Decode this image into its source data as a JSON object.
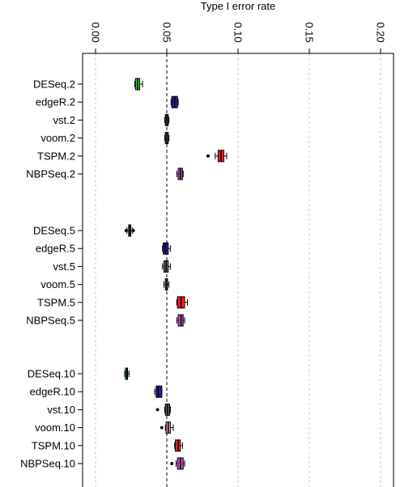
{
  "chart_data": {
    "type": "boxplot",
    "title": "Type I error rate",
    "axis": {
      "range": [
        0.0,
        0.2
      ],
      "ticks": [
        "0.00",
        "0.05",
        "0.10",
        "0.15",
        "0.20"
      ],
      "tick_values": [
        0.0,
        0.05,
        0.1,
        0.15,
        0.2
      ],
      "placement": "top",
      "tick_label_rotation": "90deg"
    },
    "grid": true,
    "reference_line": 0.05,
    "groups": [
      {
        "label": "DESeq.2",
        "color": "#33dd33",
        "min": 0.0275,
        "q1": 0.028,
        "median": 0.0295,
        "q3": 0.031,
        "max": 0.033,
        "outliers": []
      },
      {
        "label": "edgeR.2",
        "color": "#1f1f9e",
        "min": 0.053,
        "q1": 0.0535,
        "median": 0.0555,
        "q3": 0.0575,
        "max": 0.058,
        "outliers": []
      },
      {
        "label": "vst.2",
        "color": "#666666",
        "min": 0.0485,
        "q1": 0.049,
        "median": 0.05,
        "q3": 0.051,
        "max": 0.0515,
        "outliers": []
      },
      {
        "label": "voom.2",
        "color": "#b86f7a",
        "min": 0.0485,
        "q1": 0.049,
        "median": 0.05,
        "q3": 0.051,
        "max": 0.0515,
        "outliers": []
      },
      {
        "label": "TSPM.2",
        "color": "#ff2222",
        "min": 0.084,
        "q1": 0.086,
        "median": 0.088,
        "q3": 0.09,
        "max": 0.092,
        "outliers": [
          0.079
        ]
      },
      {
        "label": "NBPSeq.2",
        "color": "#c04dc0",
        "min": 0.057,
        "q1": 0.058,
        "median": 0.0595,
        "q3": 0.061,
        "max": 0.0615,
        "outliers": []
      },
      {
        "label": "DESeq.5",
        "color": "#33dd33",
        "min": 0.022,
        "q1": 0.0232,
        "median": 0.024,
        "q3": 0.0248,
        "max": 0.026,
        "outliers": [
          0.0215,
          0.0265
        ]
      },
      {
        "label": "edgeR.5",
        "color": "#1f1f9e",
        "min": 0.047,
        "q1": 0.0475,
        "median": 0.049,
        "q3": 0.051,
        "max": 0.0525,
        "outliers": []
      },
      {
        "label": "vst.5",
        "color": "#666666",
        "min": 0.047,
        "q1": 0.048,
        "median": 0.0495,
        "q3": 0.051,
        "max": 0.0525,
        "outliers": []
      },
      {
        "label": "voom.5",
        "color": "#b86f7a",
        "min": 0.048,
        "q1": 0.049,
        "median": 0.05,
        "q3": 0.0505,
        "max": 0.0515,
        "outliers": []
      },
      {
        "label": "TSPM.5",
        "color": "#ff2222",
        "min": 0.057,
        "q1": 0.0575,
        "median": 0.06,
        "q3": 0.0625,
        "max": 0.0645,
        "outliers": []
      },
      {
        "label": "NBPSeq.5",
        "color": "#c04dc0",
        "min": 0.057,
        "q1": 0.058,
        "median": 0.06,
        "q3": 0.0615,
        "max": 0.0625,
        "outliers": []
      },
      {
        "label": "DESeq.10",
        "color": "#33dd33",
        "min": 0.0205,
        "q1": 0.021,
        "median": 0.022,
        "q3": 0.0225,
        "max": 0.0235,
        "outliers": []
      },
      {
        "label": "edgeR.10",
        "color": "#1f1f9e",
        "min": 0.0415,
        "q1": 0.0425,
        "median": 0.044,
        "q3": 0.0465,
        "max": 0.0465,
        "outliers": []
      },
      {
        "label": "vst.10",
        "color": "#666666",
        "min": 0.0485,
        "q1": 0.049,
        "median": 0.0505,
        "q3": 0.052,
        "max": 0.0525,
        "outliers": [
          0.0435
        ]
      },
      {
        "label": "voom.10",
        "color": "#e8a0ac",
        "min": 0.049,
        "q1": 0.0495,
        "median": 0.051,
        "q3": 0.0525,
        "max": 0.0545,
        "outliers": [
          0.0465
        ]
      },
      {
        "label": "TSPM.10",
        "color": "#ff2222",
        "min": 0.0555,
        "q1": 0.056,
        "median": 0.058,
        "q3": 0.0595,
        "max": 0.061,
        "outliers": []
      },
      {
        "label": "NBPSeq.10",
        "color": "#c04dc0",
        "min": 0.0565,
        "q1": 0.0575,
        "median": 0.0595,
        "q3": 0.0615,
        "max": 0.0625,
        "outliers": [
          0.0535
        ]
      }
    ]
  }
}
